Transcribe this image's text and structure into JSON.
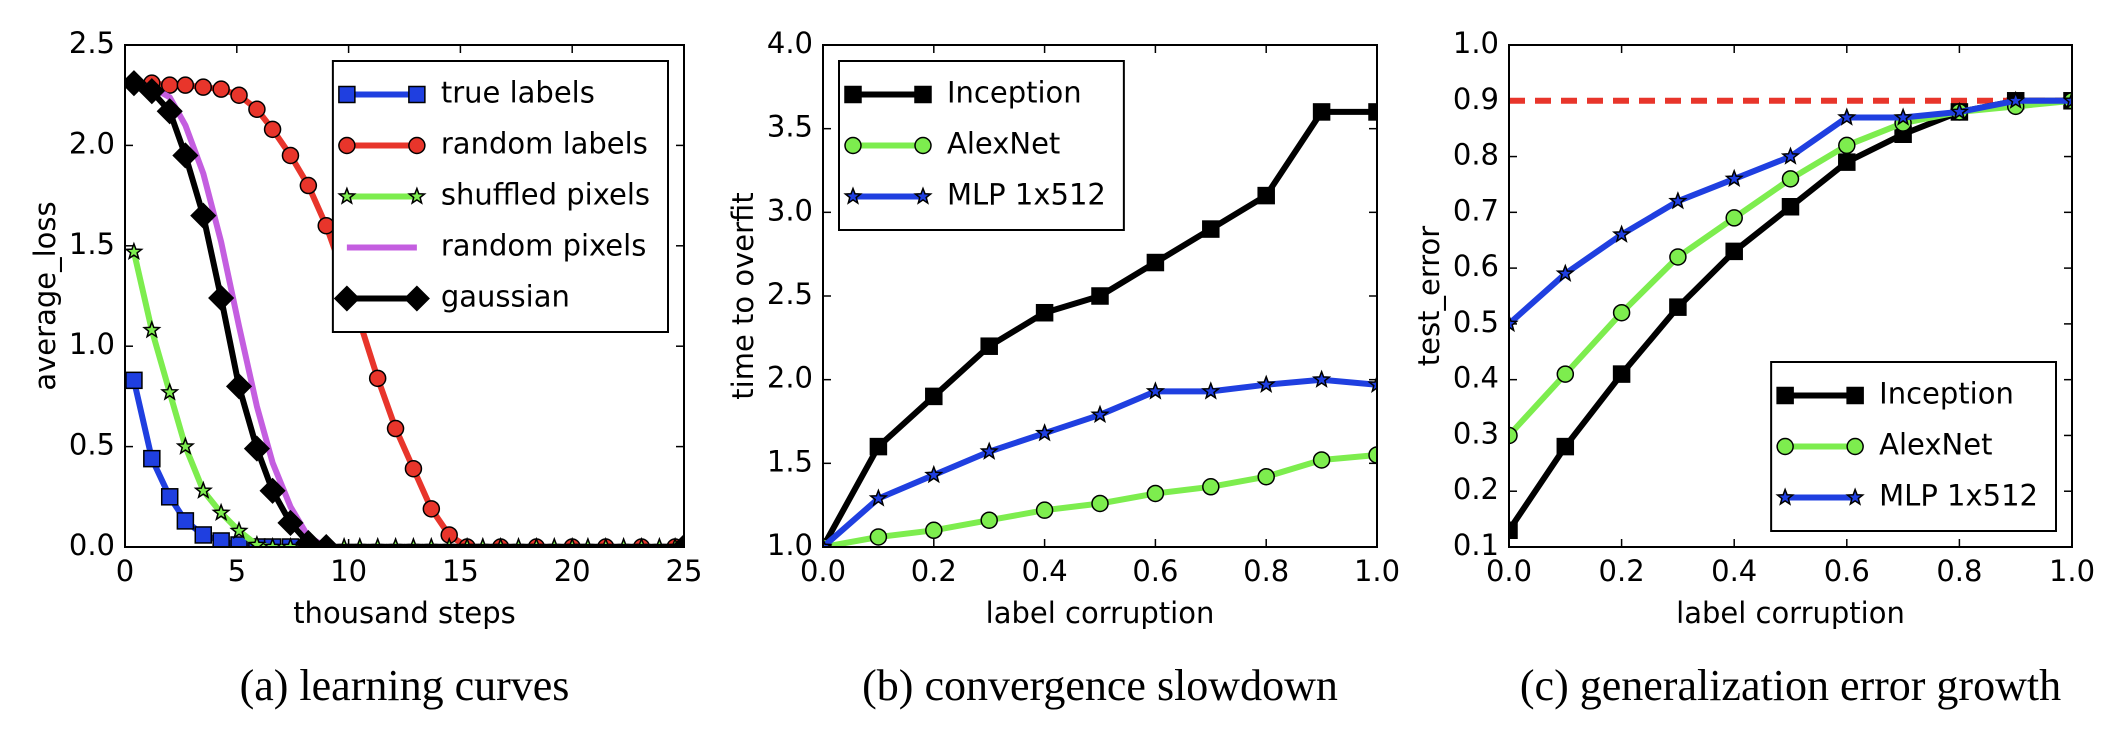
{
  "chart_data": [
    {
      "type": "line",
      "caption": "(a) learning curves",
      "xlabel": "thousand steps",
      "ylabel": "average_loss",
      "xlim": [
        0,
        25
      ],
      "ylim": [
        0,
        2.5
      ],
      "xticks": [
        0,
        5,
        10,
        15,
        20,
        25
      ],
      "yticks": [
        {
          "value": 0,
          "label": "0.0"
        },
        {
          "value": 0.5,
          "label": "0.5"
        },
        {
          "value": 1,
          "label": "1.0"
        },
        {
          "value": 1.5,
          "label": "1.5"
        },
        {
          "value": 2,
          "label": "2.0"
        },
        {
          "value": 2.5,
          "label": "2.5"
        }
      ],
      "legend": "upper right",
      "series": [
        {
          "name": "true labels",
          "color": "#1f3fe0",
          "marker": "square",
          "x": [
            0.4,
            1.2,
            2,
            2.7,
            3.5,
            4.3,
            5.1,
            5.9,
            6.6,
            7.4
          ],
          "values": [
            0.83,
            0.44,
            0.25,
            0.13,
            0.06,
            0.03,
            0.01,
            0,
            0,
            0
          ]
        },
        {
          "name": "random labels",
          "color": "#e8352b",
          "marker": "circle",
          "x": [
            0.4,
            1.2,
            2,
            2.7,
            3.5,
            4.3,
            5.1,
            5.9,
            6.6,
            7.4,
            8.2,
            9,
            9.8,
            10.5,
            11.3,
            12.1,
            12.9,
            13.7,
            14.5,
            15.3,
            16.8,
            18.4,
            20,
            21.5,
            23.1,
            24.6
          ],
          "values": [
            2.31,
            2.31,
            2.3,
            2.3,
            2.29,
            2.28,
            2.25,
            2.18,
            2.08,
            1.95,
            1.8,
            1.6,
            1.35,
            1.12,
            0.84,
            0.59,
            0.39,
            0.19,
            0.06,
            0,
            0,
            0,
            0,
            0,
            0,
            0
          ]
        },
        {
          "name": "shuffled pixels",
          "color": "#7ded4e",
          "marker": "star",
          "x": [
            0.4,
            1.2,
            2,
            2.7,
            3.5,
            4.3,
            5.1,
            5.9,
            6.6,
            7.4,
            8.2,
            9,
            9.8,
            10.5,
            11.3,
            12.1,
            12.9,
            13.7,
            14.5,
            15.3,
            16,
            16.8,
            17.6,
            18.4,
            19.2,
            20,
            20.7,
            21.5,
            22.3,
            23.1,
            23.9,
            24.6
          ],
          "values": [
            1.47,
            1.08,
            0.77,
            0.5,
            0.28,
            0.17,
            0.08,
            0.01,
            0,
            0,
            0,
            0,
            0,
            0,
            0,
            0,
            0,
            0,
            0,
            0,
            0,
            0,
            0,
            0,
            0,
            0,
            0,
            0,
            0,
            0,
            0,
            0
          ]
        },
        {
          "name": "random pixels",
          "color": "#c45ee0",
          "marker": "none",
          "x": [
            0.4,
            1.2,
            2,
            2.7,
            3.5,
            4.3,
            5.1,
            5.9,
            6.6,
            7.4,
            8.2,
            9,
            25
          ],
          "values": [
            2.31,
            2.29,
            2.24,
            2.1,
            1.86,
            1.52,
            1.1,
            0.7,
            0.42,
            0.2,
            0.05,
            0,
            0
          ]
        },
        {
          "name": "gaussian",
          "color": "#000000",
          "marker": "diamond",
          "x": [
            0.4,
            1.2,
            2,
            2.7,
            3.5,
            4.3,
            5.1,
            5.9,
            6.6,
            7.4,
            8.2,
            9,
            25
          ],
          "values": [
            2.31,
            2.27,
            2.17,
            1.95,
            1.65,
            1.24,
            0.8,
            0.49,
            0.28,
            0.12,
            0.02,
            0,
            0
          ]
        }
      ]
    },
    {
      "type": "line",
      "caption": "(b) convergence slowdown",
      "xlabel": "label corruption",
      "ylabel": "time to overfit",
      "xlim": [
        0,
        1
      ],
      "ylim": [
        1,
        4
      ],
      "xticks": [
        {
          "value": 0,
          "label": "0.0"
        },
        {
          "value": 0.2,
          "label": "0.2"
        },
        {
          "value": 0.4,
          "label": "0.4"
        },
        {
          "value": 0.6,
          "label": "0.6"
        },
        {
          "value": 0.8,
          "label": "0.8"
        },
        {
          "value": 1,
          "label": "1.0"
        }
      ],
      "yticks": [
        {
          "value": 1,
          "label": "1.0"
        },
        {
          "value": 1.5,
          "label": "1.5"
        },
        {
          "value": 2,
          "label": "2.0"
        },
        {
          "value": 2.5,
          "label": "2.5"
        },
        {
          "value": 3,
          "label": "3.0"
        },
        {
          "value": 3.5,
          "label": "3.5"
        },
        {
          "value": 4,
          "label": "4.0"
        }
      ],
      "legend": "upper left",
      "x": [
        0,
        0.1,
        0.2,
        0.3,
        0.4,
        0.5,
        0.6,
        0.7,
        0.8,
        0.9,
        1
      ],
      "series": [
        {
          "name": "Inception",
          "color": "#000000",
          "marker": "square",
          "values": [
            1,
            1.6,
            1.9,
            2.2,
            2.4,
            2.5,
            2.7,
            2.9,
            3.1,
            3.6,
            3.6
          ]
        },
        {
          "name": "AlexNet",
          "color": "#7ded4e",
          "marker": "circle",
          "values": [
            1,
            1.06,
            1.1,
            1.16,
            1.22,
            1.26,
            1.32,
            1.36,
            1.42,
            1.52,
            1.55
          ]
        },
        {
          "name": "MLP 1x512",
          "color": "#1f3fe0",
          "marker": "star",
          "values": [
            1,
            1.29,
            1.43,
            1.57,
            1.68,
            1.79,
            1.93,
            1.93,
            1.97,
            2,
            1.97
          ]
        }
      ]
    },
    {
      "type": "line",
      "caption": "(c) generalization error growth",
      "xlabel": "label corruption",
      "ylabel": "test_error",
      "xlim": [
        0,
        1
      ],
      "ylim": [
        0.1,
        1
      ],
      "xticks": [
        {
          "value": 0,
          "label": "0.0"
        },
        {
          "value": 0.2,
          "label": "0.2"
        },
        {
          "value": 0.4,
          "label": "0.4"
        },
        {
          "value": 0.6,
          "label": "0.6"
        },
        {
          "value": 0.8,
          "label": "0.8"
        },
        {
          "value": 1,
          "label": "1.0"
        }
      ],
      "yticks": [
        0.1,
        0.2,
        0.3,
        0.4,
        0.5,
        0.6,
        0.7,
        0.8,
        0.9,
        {
          "value": 1,
          "label": "1.0"
        }
      ],
      "legend": "lower right",
      "hline": {
        "value": 0.9,
        "color": "#e8352b"
      },
      "x": [
        0,
        0.1,
        0.2,
        0.3,
        0.4,
        0.5,
        0.6,
        0.7,
        0.8,
        0.9,
        1
      ],
      "series": [
        {
          "name": "Inception",
          "color": "#000000",
          "marker": "square",
          "values": [
            0.13,
            0.28,
            0.41,
            0.53,
            0.63,
            0.71,
            0.79,
            0.84,
            0.88,
            0.9,
            0.9
          ]
        },
        {
          "name": "AlexNet",
          "color": "#7ded4e",
          "marker": "circle",
          "values": [
            0.3,
            0.41,
            0.52,
            0.62,
            0.69,
            0.76,
            0.82,
            0.86,
            0.88,
            0.89,
            0.9
          ]
        },
        {
          "name": "MLP 1x512",
          "color": "#1f3fe0",
          "marker": "star",
          "values": [
            0.5,
            0.59,
            0.66,
            0.72,
            0.76,
            0.8,
            0.87,
            0.87,
            0.88,
            0.9,
            0.9
          ]
        }
      ]
    }
  ]
}
